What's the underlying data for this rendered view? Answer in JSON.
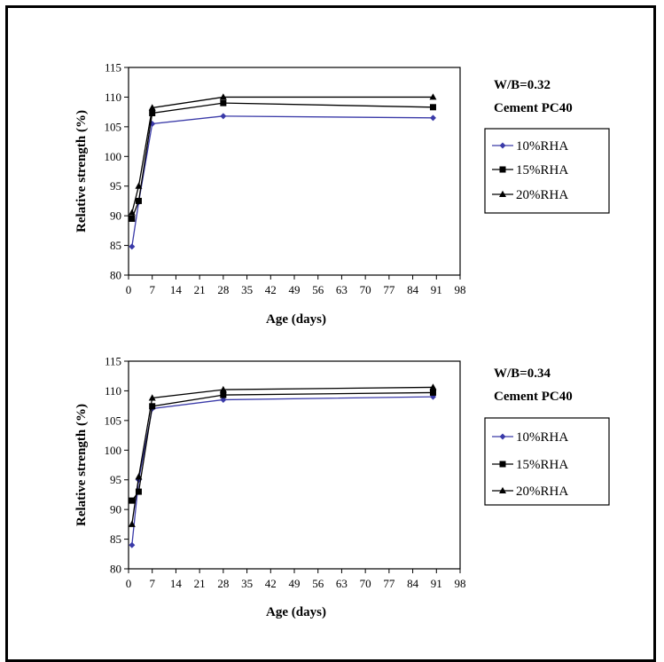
{
  "chart_data": [
    {
      "type": "line",
      "title": "",
      "xlabel": "Age (days)",
      "ylabel": "Relative strength (%)",
      "xlim": [
        0,
        98
      ],
      "ylim": [
        80,
        115
      ],
      "xticks": [
        0,
        7,
        14,
        21,
        28,
        35,
        42,
        49,
        56,
        63,
        70,
        77,
        84,
        91,
        98
      ],
      "yticks": [
        80,
        85,
        90,
        95,
        100,
        105,
        110,
        115
      ],
      "annotation": [
        "W/B=0.32",
        "Cement PC40"
      ],
      "legend_position": "right",
      "grid": false,
      "series": [
        {
          "name": "10%RHA",
          "marker": "diamond",
          "color": "#3a3aa8",
          "x": [
            1,
            3,
            7,
            28,
            90
          ],
          "y": [
            84.8,
            92.3,
            105.5,
            106.8,
            106.5
          ]
        },
        {
          "name": "15%RHA",
          "marker": "square",
          "color": "#000000",
          "x": [
            1,
            3,
            7,
            28,
            90
          ],
          "y": [
            89.5,
            92.5,
            107.3,
            109.0,
            108.3
          ]
        },
        {
          "name": "20%RHA",
          "marker": "triangle",
          "color": "#000000",
          "x": [
            1,
            3,
            7,
            28,
            90
          ],
          "y": [
            90.5,
            95.0,
            108.2,
            110.0,
            110.0
          ]
        }
      ]
    },
    {
      "type": "line",
      "title": "",
      "xlabel": "Age (days)",
      "ylabel": "Relative strength (%)",
      "xlim": [
        0,
        98
      ],
      "ylim": [
        80,
        115
      ],
      "xticks": [
        0,
        7,
        14,
        21,
        28,
        35,
        42,
        49,
        56,
        63,
        70,
        77,
        84,
        91,
        98
      ],
      "yticks": [
        80,
        85,
        90,
        95,
        100,
        105,
        110,
        115
      ],
      "annotation": [
        "W/B=0.34",
        "Cement PC40"
      ],
      "legend_position": "right",
      "grid": false,
      "series": [
        {
          "name": "10%RHA",
          "marker": "diamond",
          "color": "#3a3aa8",
          "x": [
            1,
            3,
            7,
            28,
            90
          ],
          "y": [
            84.0,
            95.0,
            107.0,
            108.5,
            109.0
          ]
        },
        {
          "name": "15%RHA",
          "marker": "square",
          "color": "#000000",
          "x": [
            1,
            3,
            7,
            28,
            90
          ],
          "y": [
            91.5,
            93.0,
            107.4,
            109.3,
            109.7
          ]
        },
        {
          "name": "20%RHA",
          "marker": "triangle",
          "color": "#000000",
          "x": [
            1,
            3,
            7,
            28,
            90
          ],
          "y": [
            87.5,
            95.5,
            108.8,
            110.2,
            110.6
          ]
        }
      ]
    }
  ]
}
